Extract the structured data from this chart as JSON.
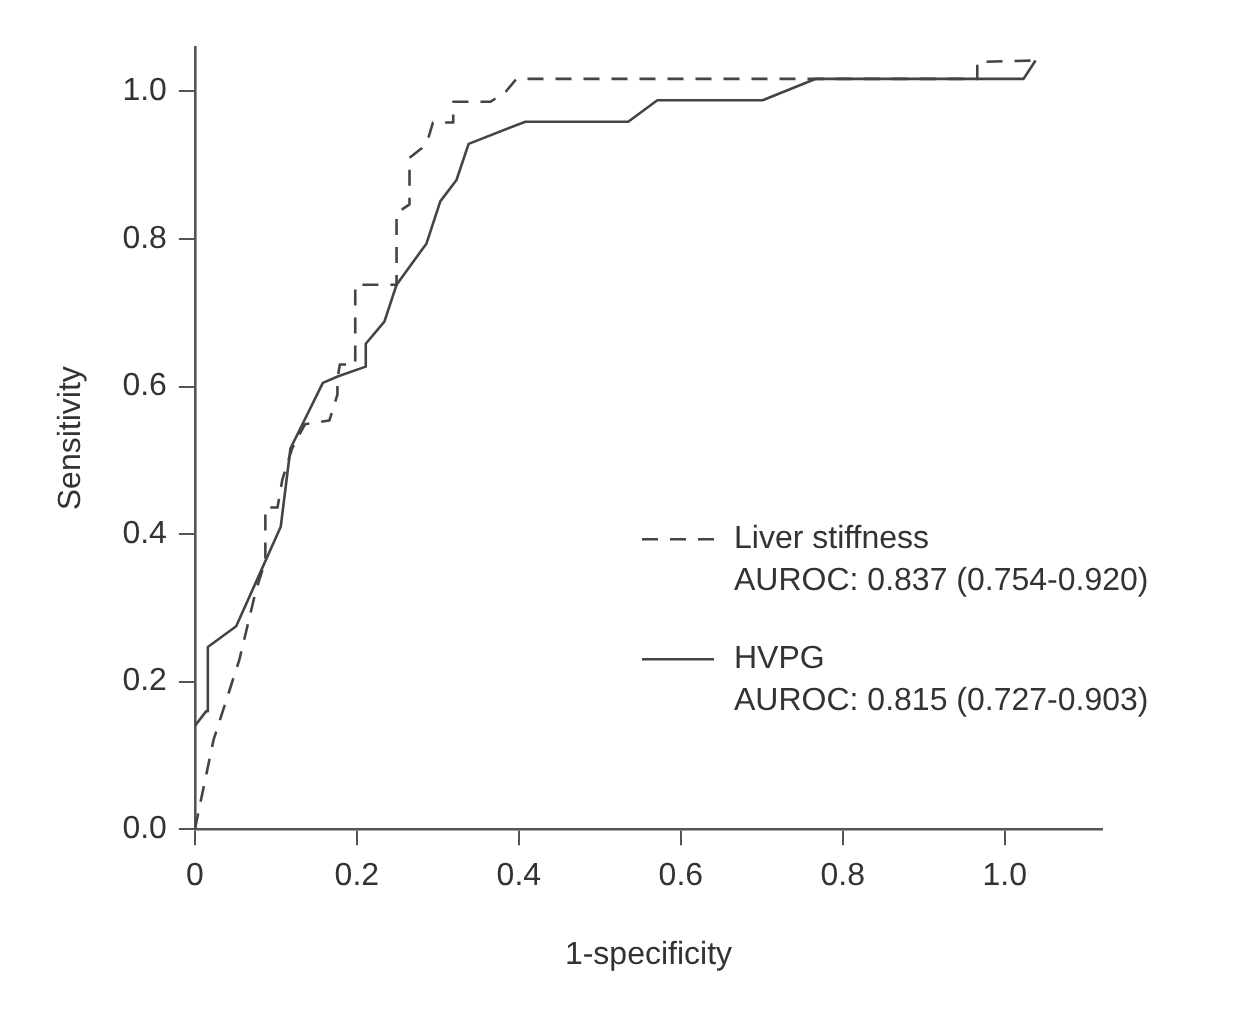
{
  "chart_data": {
    "type": "line",
    "xlabel": "1-specificity",
    "ylabel": "Sensitivity",
    "series": [
      {
        "name": "Liver stiffness",
        "color": "#444444",
        "line_style": "dashed",
        "x": [
          0,
          0.023,
          0.055,
          0.075,
          0.087,
          0.087,
          0.102,
          0.108,
          0.12,
          0.136,
          0.166,
          0.176,
          0.176,
          0.179,
          0.198,
          0.198,
          0.217,
          0.249,
          0.249,
          0.265,
          0.265,
          0.28,
          0.288,
          0.294,
          0.319,
          0.319,
          0.365,
          0.384,
          0.397,
          0.966,
          0.966,
          1.038
        ],
        "values": [
          0,
          0.121,
          0.23,
          0.322,
          0.364,
          0.436,
          0.436,
          0.474,
          0.516,
          0.549,
          0.554,
          0.589,
          0.61,
          0.63,
          0.63,
          0.738,
          0.738,
          0.738,
          0.835,
          0.847,
          0.91,
          0.923,
          0.936,
          0.958,
          0.958,
          0.986,
          0.986,
          1.0,
          1.017,
          1.017,
          1.04,
          1.042
        ]
      },
      {
        "name": "HVPG",
        "color": "#444444",
        "line_style": "solid",
        "x": [
          0,
          0.014,
          0.016,
          0.051,
          0.106,
          0.118,
          0.158,
          0.177,
          0.211,
          0.211,
          0.234,
          0.249,
          0.286,
          0.303,
          0.323,
          0.338,
          0.408,
          0.535,
          0.571,
          0.701,
          0.766,
          1.023,
          1.038
        ],
        "values": [
          0.14,
          0.16,
          0.247,
          0.275,
          0.41,
          0.516,
          0.605,
          0.614,
          0.627,
          0.658,
          0.688,
          0.738,
          0.794,
          0.851,
          0.88,
          0.929,
          0.959,
          0.959,
          0.988,
          0.988,
          1.017,
          1.017,
          1.042
        ]
      }
    ],
    "annotations": [
      "AUROC: 0.837 (0.754-0.920)",
      "AUROC: 0.815 (0.727-0.903)"
    ],
    "xlim": [
      0,
      1.12
    ],
    "xticks": [
      0,
      0.2,
      0.4,
      0.6,
      0.8,
      {
        "value": 1,
        "label": "1.0"
      }
    ],
    "ylim": [
      0,
      1.06
    ],
    "yticks": [
      {
        "value": 0,
        "label": "0.0"
      },
      0.2,
      0.4,
      0.6,
      0.8,
      {
        "value": 1,
        "label": "1.0"
      }
    ],
    "grid": false,
    "legend": "bottom right",
    "marker": "none"
  }
}
